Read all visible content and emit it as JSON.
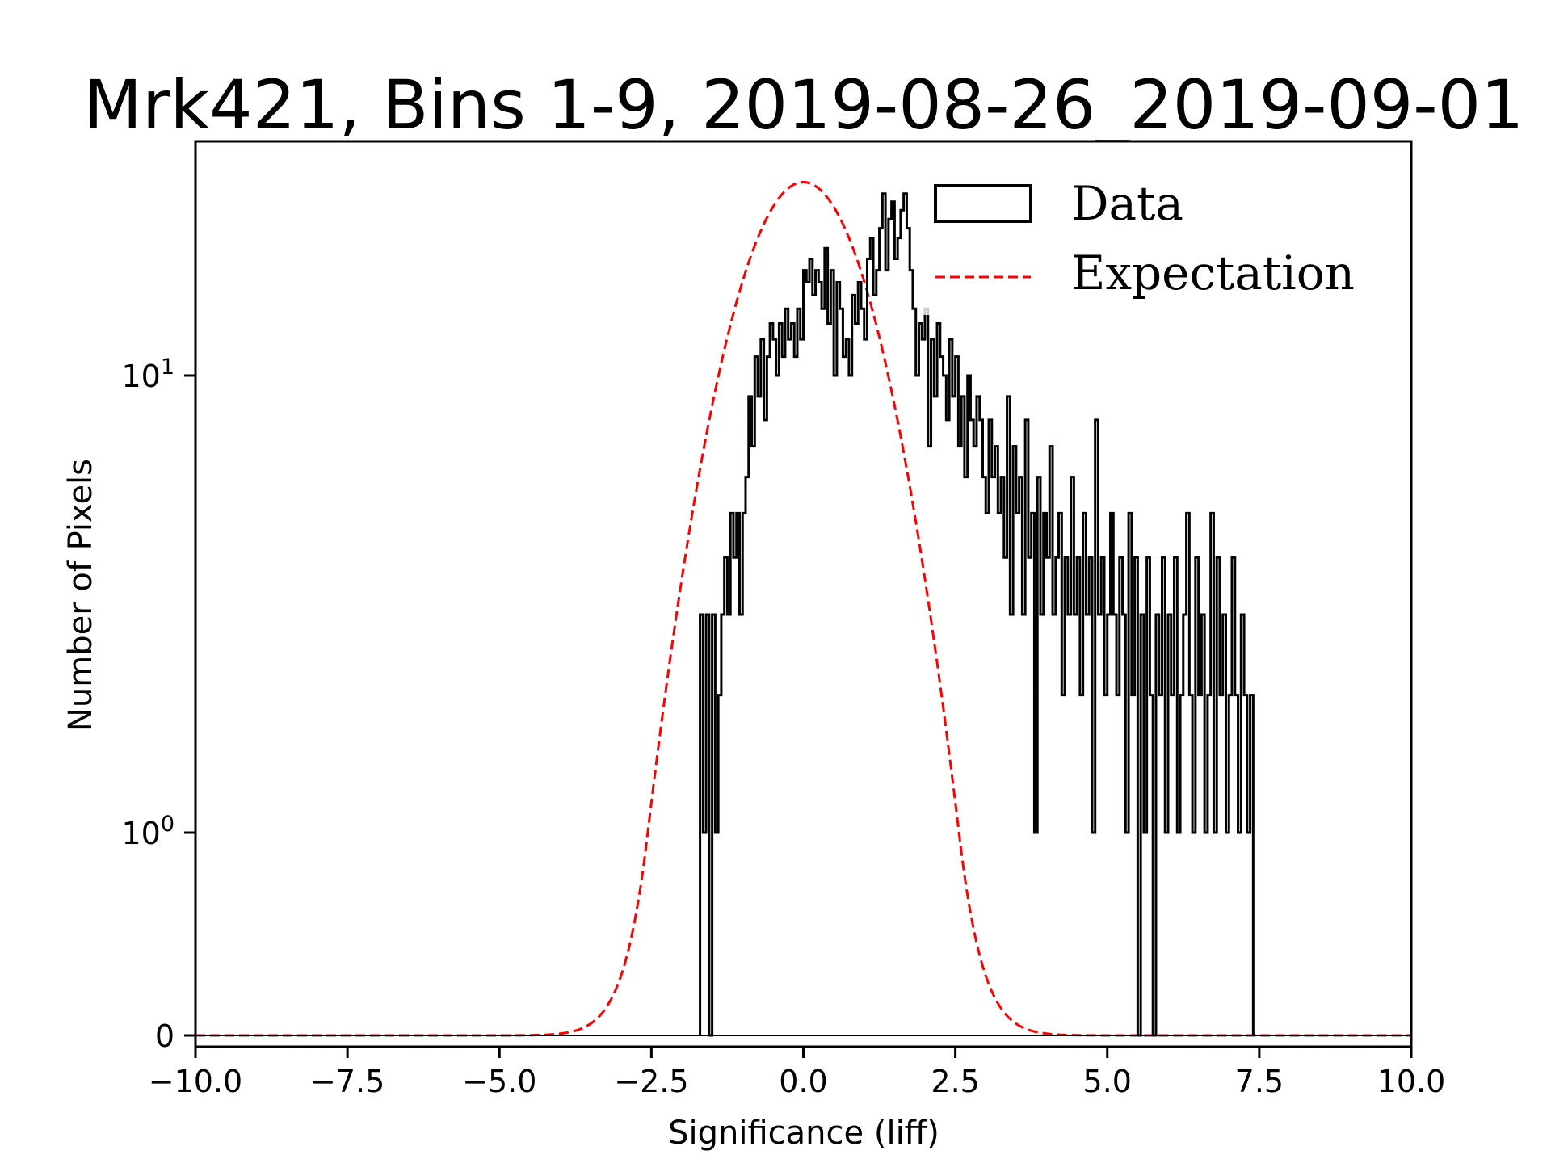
{
  "chart_data": {
    "type": "bar",
    "title": "Mrk421, Bins 1-9, 2019-08-26_2019-09-01",
    "xlabel": "Significance (liff)",
    "ylabel": "Number of Pixels",
    "xlim": [
      -10,
      10
    ],
    "ylim": [
      0,
      32.5
    ],
    "yscale": "symlog",
    "ylinthresh": 1,
    "grid": false,
    "legend_position": "top-right",
    "x_ticks": [
      -10,
      -7.5,
      -5,
      -2.5,
      0,
      2.5,
      5,
      7.5,
      10
    ],
    "x_tick_labels": [
      "−10.0",
      "−7.5",
      "−5.0",
      "−2.5",
      "0.0",
      "2.5",
      "5.0",
      "7.5",
      "10.0"
    ],
    "y_ticks": [
      {
        "value": 0,
        "label": "0",
        "sup": ""
      },
      {
        "value": 1,
        "label": "10",
        "sup": "0"
      },
      {
        "value": 10,
        "label": "10",
        "sup": "1"
      }
    ],
    "series": [
      {
        "name": "Data",
        "kind": "step-histogram",
        "color": "#000000",
        "bin_start": -1.7,
        "bin_width": 0.05,
        "counts": [
          3,
          1,
          3,
          0,
          3,
          1,
          2,
          3,
          4,
          3,
          5,
          4,
          5,
          3,
          5,
          6,
          9,
          7,
          11,
          9,
          12,
          8,
          11,
          13,
          12,
          10,
          13,
          11,
          14,
          12,
          13,
          11,
          14,
          12,
          17,
          16,
          18,
          15,
          17,
          16,
          14,
          19,
          13,
          17,
          10,
          16,
          14,
          11,
          12,
          10,
          15,
          13,
          16,
          14,
          12,
          18,
          20,
          15,
          17,
          21,
          25,
          17,
          22,
          24,
          18,
          20,
          23,
          25,
          21,
          17,
          14,
          10,
          13,
          12,
          14,
          7,
          12,
          9,
          13,
          11,
          10,
          8,
          12,
          9,
          11,
          7,
          9,
          6,
          10,
          8,
          7,
          9,
          8,
          6,
          5,
          8,
          6,
          7,
          5,
          6,
          4,
          9,
          3,
          7,
          5,
          6,
          3,
          8,
          4,
          5,
          1,
          6,
          3,
          5,
          4,
          7,
          3,
          4,
          5,
          2,
          4,
          3,
          6,
          3,
          4,
          2,
          5,
          3,
          4,
          1,
          8,
          3,
          4,
          2,
          3,
          5,
          3,
          2,
          4,
          3,
          1,
          5,
          2,
          4,
          0,
          3,
          1,
          4,
          2,
          0,
          3,
          2,
          4,
          1,
          3,
          2,
          4,
          1,
          2,
          3,
          5,
          2,
          1,
          4,
          2,
          3,
          1,
          2,
          5,
          1,
          4,
          2,
          3,
          1,
          2,
          4,
          2,
          1,
          3,
          2,
          1,
          2
        ],
        "note": "approximate bin counts read off a symlog axis"
      },
      {
        "name": "Expectation",
        "kind": "line",
        "style": "dashed",
        "color": "#ff0000",
        "peak": 26.5,
        "mean": 0.0,
        "sigma": 1.0,
        "x_range": [
          -10,
          10
        ]
      }
    ],
    "legend": [
      {
        "label": "Data",
        "marker": "open-rectangle",
        "color": "#000000"
      },
      {
        "label": "Expectation",
        "marker": "dashed-line",
        "color": "#ff0000"
      }
    ]
  }
}
